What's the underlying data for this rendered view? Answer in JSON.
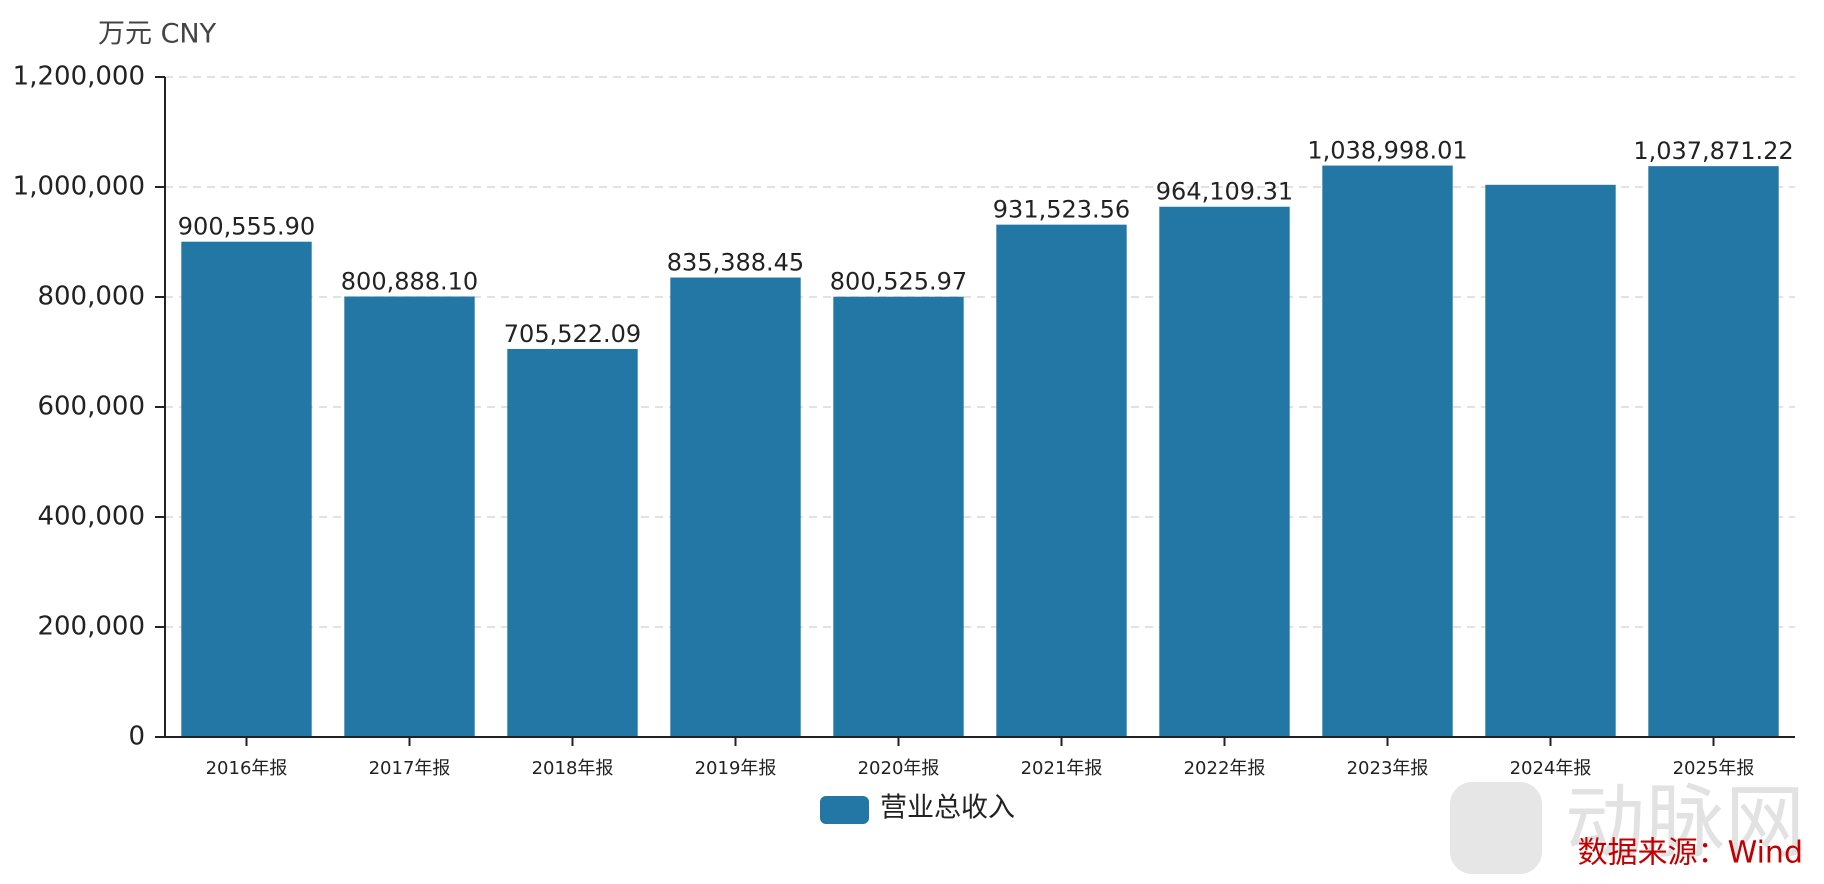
{
  "chart_data": {
    "type": "bar",
    "unit_label": "万元  CNY",
    "categories": [
      "2016年报",
      "2017年报",
      "2018年报",
      "2019年报",
      "2020年报",
      "2021年报",
      "2022年报",
      "2023年报",
      "2024年报",
      "2025年报"
    ],
    "series": [
      {
        "name": "营业总收入",
        "color": "#2377a4",
        "values": [
          900555.9,
          800888.1,
          705522.09,
          835388.45,
          800525.97,
          931523.56,
          964109.31,
          1038998.01,
          1004000,
          1037871.22
        ],
        "value_labels": [
          "900,555.90",
          "800,888.10",
          "705,522.09",
          "835,388.45",
          "800,525.97",
          "931,523.56",
          "964,109.31",
          "1,038,998.01",
          null,
          "1,037,871.22"
        ]
      }
    ],
    "ylim": [
      0,
      1200000
    ],
    "yticks": [
      0,
      {
        "value": 200000,
        "label": "200,000"
      },
      {
        "value": 400000,
        "label": "400,000"
      },
      {
        "value": 600000,
        "label": "600,000"
      },
      {
        "value": 800000,
        "label": "800,000"
      },
      {
        "value": 1000000,
        "label": "1,000,000"
      },
      {
        "value": 1200000,
        "label": "1,200,000"
      }
    ],
    "grid": true,
    "source": "数据来源：Wind",
    "watermark": "动脉网"
  }
}
